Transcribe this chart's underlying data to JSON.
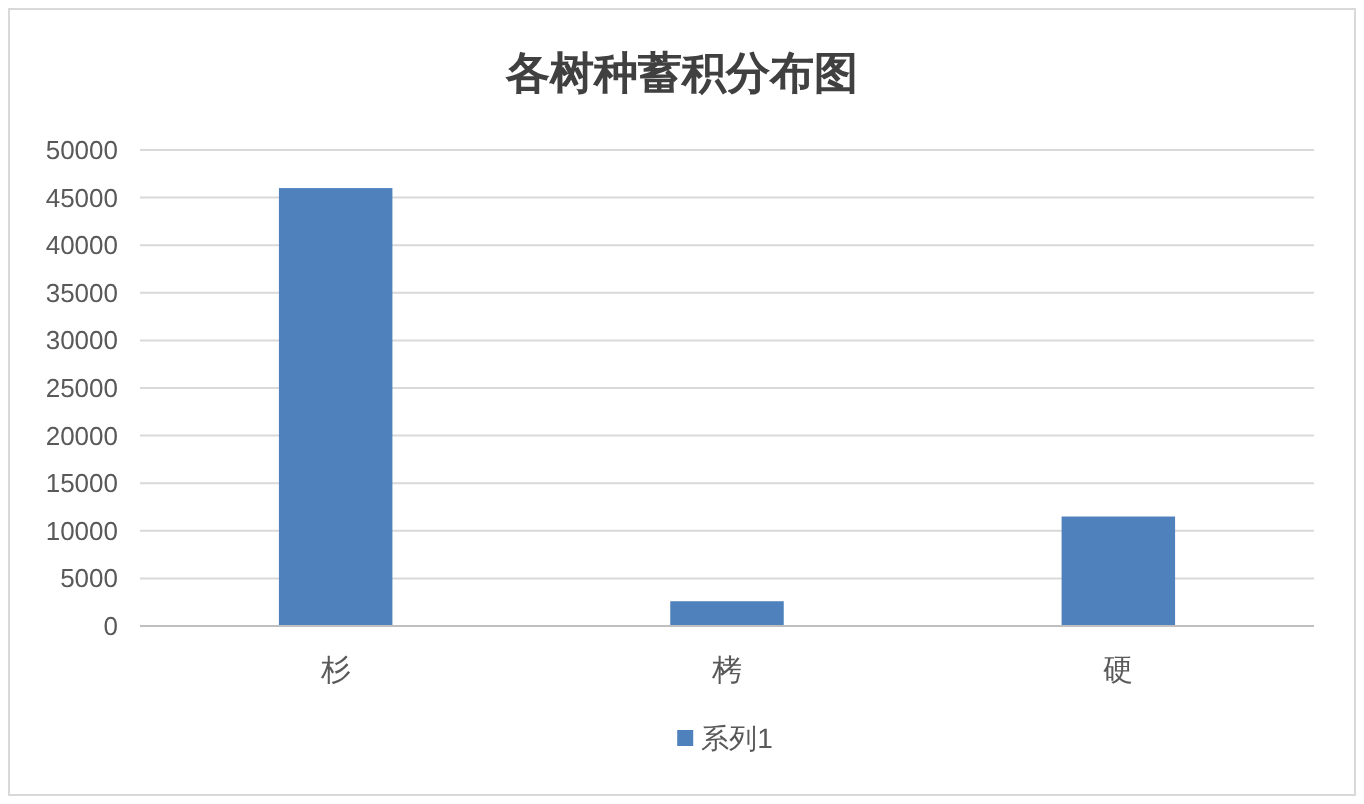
{
  "chart_data": {
    "type": "bar",
    "title": "各树种蓄积分布图",
    "categories": [
      "杉",
      "栲",
      "硬"
    ],
    "series": [
      {
        "name": "系列1",
        "color": "#4f81bd",
        "values": [
          46000,
          2600,
          11500
        ]
      }
    ],
    "ylim": [
      0,
      50000
    ],
    "yticks": [
      0,
      5000,
      10000,
      15000,
      20000,
      25000,
      30000,
      35000,
      40000,
      45000,
      50000
    ],
    "grid": "y",
    "legend": "bottom"
  }
}
